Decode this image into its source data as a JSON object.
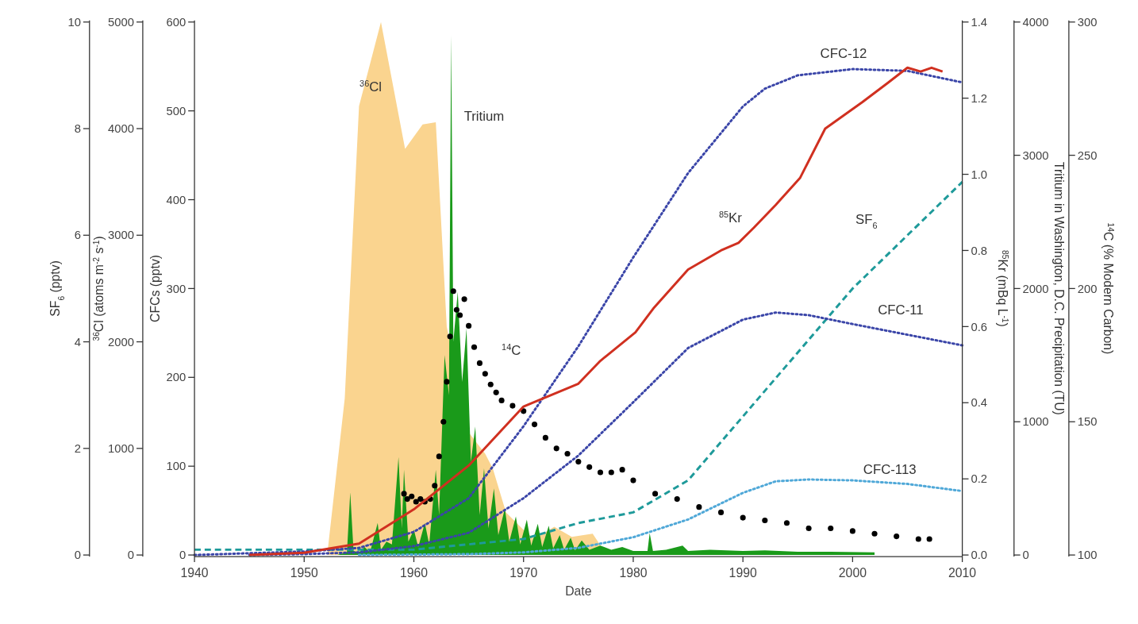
{
  "chart_data": [
    {
      "type": "area",
      "tick_labels": "y",
      "xlim": [
        1940,
        2010
      ],
      "ylabel": "$^{36}$Cl (atoms m$^{-2}$ s$^{-1}$)",
      "ylim": [
        0,
        5000
      ],
      "yticks": [
        0,
        1000,
        2000,
        3000,
        4000,
        5000
      ],
      "y2label": "Tritium in Washington, D.C. Precipitation (TU)",
      "y2lim": [
        0,
        4000
      ],
      "y2ticks": [
        0,
        1000,
        2000,
        3000,
        4000
      ],
      "series": [
        {
          "name": "$^{36}$Cl",
          "color": "#fad48f",
          "x": [
            1952.1,
            1953.7,
            1955.0,
            1957.0,
            1959.2,
            1960.8,
            1962.0,
            1963.0,
            1964.0,
            1965.0,
            1966.5,
            1967.2,
            1968.4,
            1970,
            1971,
            1972.8,
            1974.4,
            1976.3,
            1977.6
          ],
          "values": [
            0,
            1470,
            4210,
            5000,
            3810,
            4040,
            4060,
            2140,
            null,
            1150,
            950,
            810,
            400,
            235,
            150,
            265,
            170,
            200,
            0
          ]
        },
        {
          "name": "Tritium",
          "axis": "y2",
          "color": "#1a9a1a",
          "x": [
            1953.0,
            1953.9,
            1954.2,
            1954.5,
            1955.0,
            1955.5,
            1956.0,
            1956.7,
            1957.0,
            1957.5,
            1958.0,
            1958.6,
            1958.9,
            1959.1,
            1959.5,
            1960.0,
            1960.4,
            1961.0,
            1961.4,
            1962.0,
            1962.3,
            1962.8,
            1963.2,
            1963.4,
            1963.6,
            1964.0,
            1964.4,
            1964.8,
            1965.2,
            1965.6,
            1966.0,
            1966.4,
            1966.8,
            1967.3,
            1967.7,
            1968.3,
            1968.7,
            1969.3,
            1969.7,
            1970.3,
            1970.7,
            1971.3,
            1971.7,
            1972.3,
            1972.7,
            1973.3,
            1973.7,
            1974.3,
            1974.7,
            1975.3,
            1976,
            1977,
            1978,
            1979,
            1980,
            1981.3,
            1981.5,
            1981.8,
            1983,
            1984.5,
            1985,
            1987,
            1990,
            1992,
            1995,
            1998,
            2002
          ],
          "values": [
            0,
            20,
            470,
            30,
            20,
            60,
            20,
            240,
            40,
            100,
            80,
            735,
            200,
            640,
            100,
            190,
            60,
            240,
            80,
            640,
            300,
            1500,
            1200,
            3900,
            1600,
            1975,
            1300,
            1700,
            700,
            965,
            300,
            650,
            200,
            500,
            150,
            350,
            100,
            290,
            80,
            265,
            70,
            235,
            60,
            220,
            50,
            150,
            40,
            130,
            35,
            110,
            40,
            70,
            40,
            60,
            30,
            30,
            165,
            30,
            40,
            70,
            30,
            40,
            30,
            35,
            25,
            25,
            20
          ]
        }
      ]
    },
    {
      "type": "line",
      "tick_labels": "y",
      "xlim": [
        1940,
        2010
      ],
      "ylabel": "SF$_{6}$ (pptv)",
      "ylim": [
        0,
        10
      ],
      "yticks": [
        0,
        2,
        4,
        6,
        8,
        10
      ],
      "y2label": "$^{14}$C (% Modern Carbon)",
      "y2lim": [
        100,
        300
      ],
      "y2ticks": [
        100,
        150,
        200,
        250,
        300
      ],
      "series": [
        {
          "name": "SF$_{6}$",
          "line_style": "dashed",
          "color": "#1e9a9a",
          "x": [
            1940,
            1950,
            1960,
            1965,
            1970,
            1975,
            1980,
            1985,
            1990,
            1995,
            2000,
            2005,
            2010
          ],
          "values": [
            0.1,
            0.1,
            0.1,
            0.2,
            0.3,
            0.6,
            0.8,
            1.4,
            2.6,
            3.8,
            5.0,
            6.0,
            7.0
          ]
        },
        {
          "name": "$^{14}$C",
          "type": "scatter",
          "axis": "y2",
          "marker": "circle",
          "color": "#000000",
          "x": [
            1959.1,
            1959.4,
            1959.8,
            1960.2,
            1960.6,
            1961.0,
            1961.5,
            1961.9,
            1962.3,
            1962.7,
            1963.0,
            1963.3,
            1963.6,
            1963.9,
            1964.2,
            1964.6,
            1965.0,
            1965.5,
            1966.0,
            1966.5,
            1967.0,
            1967.5,
            1968.0,
            1969.0,
            1970.0,
            1971.0,
            1972.0,
            1973.0,
            1974.0,
            1975.0,
            1976.0,
            1977.0,
            1978.0,
            1979.0,
            1980.0,
            1982,
            1984,
            1986,
            1988,
            1990,
            1992,
            1994,
            1996,
            1998,
            2000,
            2002,
            2004,
            2006,
            2007
          ],
          "values": [
            123,
            121,
            122,
            120,
            121,
            120,
            121,
            126,
            137,
            150,
            165,
            182,
            199,
            192,
            190,
            196,
            186,
            178,
            172,
            168,
            164,
            161,
            158,
            156,
            154,
            149,
            144,
            140,
            138,
            135,
            133,
            131,
            131,
            132,
            128,
            123,
            121,
            118,
            116,
            114,
            113,
            112,
            110,
            110,
            109,
            108,
            107,
            106,
            106
          ]
        }
      ]
    },
    {
      "type": "line",
      "xlabel": "Date",
      "xlim": [
        1940,
        2010
      ],
      "xticks": [
        1940,
        1950,
        1960,
        1970,
        1980,
        1990,
        2000,
        2010
      ],
      "ylabel": "CFCs (pptv)",
      "ylim": [
        0,
        600
      ],
      "yticks": [
        0,
        100,
        200,
        300,
        400,
        500,
        600
      ],
      "y2label": "$^{85}$Kr (mBq L$^{-1}$)",
      "y2lim": [
        0,
        1.4
      ],
      "y2ticks": [
        {
          "value": 0,
          "label": "0.0"
        },
        0.2,
        0.4,
        0.6,
        0.8,
        {
          "value": 1,
          "label": "1.0"
        },
        1.2,
        1.4
      ],
      "series": [
        {
          "name": "CFC-12",
          "line_style": "dotted",
          "color": "#3a45a8",
          "x": [
            1940,
            1945,
            1950,
            1955,
            1960,
            1965,
            1970,
            1975,
            1980,
            1985,
            1990,
            1992,
            1995,
            2000,
            2005,
            2010
          ],
          "values": [
            0,
            2,
            4,
            8,
            26,
            64,
            145,
            235,
            335,
            430,
            505,
            525,
            540,
            547,
            545,
            532
          ]
        },
        {
          "name": "CFC-11",
          "line_style": "dotted",
          "color": "#3a45a8",
          "x": [
            1945,
            1950,
            1955,
            1960,
            1965,
            1970,
            1975,
            1980,
            1985,
            1990,
            1993,
            1996,
            2000,
            2005,
            2010
          ],
          "values": [
            0,
            1,
            3,
            10,
            25,
            64,
            112,
            172,
            233,
            265,
            273,
            270,
            260,
            248,
            236
          ]
        },
        {
          "name": "CFC-113",
          "line_style": "dotted",
          "color": "#4fa8d8",
          "x": [
            1955,
            1965,
            1970,
            1975,
            1980,
            1985,
            1990,
            1993,
            1996,
            2000,
            2005,
            2010
          ],
          "values": [
            0,
            1,
            3,
            8,
            20,
            40,
            70,
            83,
            85,
            84,
            80,
            72
          ]
        },
        {
          "name": "$^{85}$Kr",
          "axis": "y2",
          "line_style": "solid",
          "color": "#d03020",
          "x": [
            1945,
            1950,
            1955,
            1960,
            1965,
            1970,
            1975,
            1977,
            1980.2,
            1981.9,
            1985,
            1988,
            1989.6,
            1991,
            1993,
            1995.2,
            1997.5,
            2000.9,
            2003.2,
            2005,
            2006.2,
            2007.2,
            2008.2
          ],
          "values": [
            0,
            0.006,
            0.03,
            0.12,
            0.235,
            0.39,
            0.45,
            0.51,
            0.585,
            0.65,
            0.75,
            0.8,
            0.82,
            0.86,
            0.92,
            0.99,
            1.12,
            1.19,
            1.24,
            1.28,
            1.27,
            1.28,
            1.27
          ]
        }
      ]
    }
  ]
}
